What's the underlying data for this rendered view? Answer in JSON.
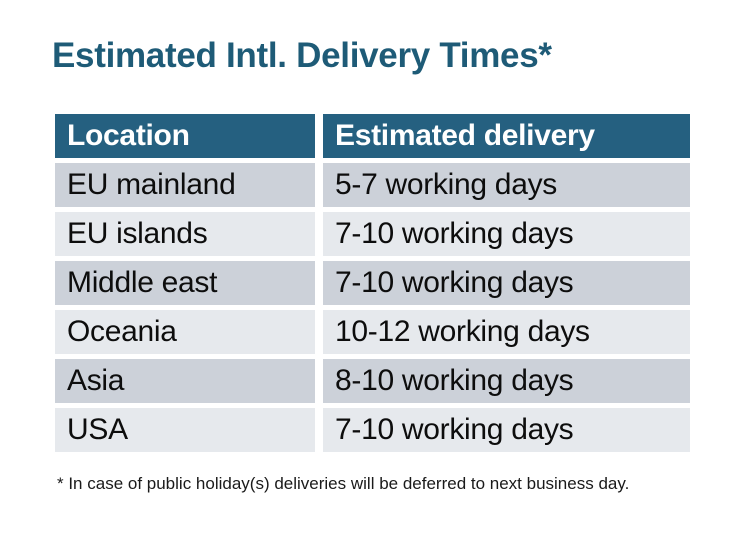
{
  "title": "Estimated Intl. Delivery Times*",
  "table": {
    "headers": [
      "Location",
      "Estimated delivery"
    ],
    "rows": [
      {
        "location": "EU mainland",
        "delivery": "5-7 working days"
      },
      {
        "location": "EU islands",
        "delivery": "7-10 working days"
      },
      {
        "location": "Middle east",
        "delivery": "7-10 working days"
      },
      {
        "location": "Oceania",
        "delivery": "10-12 working days"
      },
      {
        "location": "Asia",
        "delivery": "8-10 working days"
      },
      {
        "location": "USA",
        "delivery": "7-10 working days"
      }
    ]
  },
  "footnote": "* In case of public holiday(s) deliveries will be deferred to next business day.",
  "colors": {
    "title_text": "#1E5B77",
    "header_bg": "#256080",
    "header_text": "#FFFFFF",
    "row_dark_bg": "#CCD1D9",
    "row_light_bg": "#E6E9ED",
    "cell_text": "#0D0D0D",
    "footnote_text": "#1A1A1A"
  }
}
